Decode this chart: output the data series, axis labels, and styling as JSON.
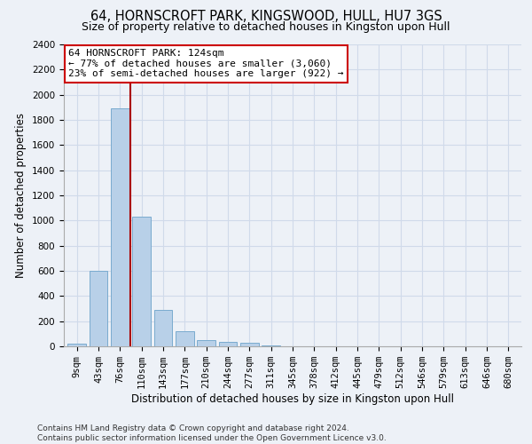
{
  "title": "64, HORNSCROFT PARK, KINGSWOOD, HULL, HU7 3GS",
  "subtitle": "Size of property relative to detached houses in Kingston upon Hull",
  "xlabel": "Distribution of detached houses by size in Kingston upon Hull",
  "ylabel": "Number of detached properties",
  "categories": [
    "9sqm",
    "43sqm",
    "76sqm",
    "110sqm",
    "143sqm",
    "177sqm",
    "210sqm",
    "244sqm",
    "277sqm",
    "311sqm",
    "345sqm",
    "378sqm",
    "412sqm",
    "445sqm",
    "479sqm",
    "512sqm",
    "546sqm",
    "579sqm",
    "613sqm",
    "646sqm",
    "680sqm"
  ],
  "values": [
    20,
    600,
    1890,
    1030,
    290,
    120,
    50,
    35,
    25,
    5,
    3,
    2,
    2,
    1,
    1,
    0,
    0,
    0,
    0,
    0,
    0
  ],
  "bar_color": "#b8d0e8",
  "bar_edge_color": "#7aabcf",
  "grid_color": "#d0daea",
  "background_color": "#edf1f7",
  "vline_color": "#aa0000",
  "vline_x_index": 2.5,
  "annotation_text": "64 HORNSCROFT PARK: 124sqm\n← 77% of detached houses are smaller (3,060)\n23% of semi-detached houses are larger (922) →",
  "annotation_box_color": "#ffffff",
  "annotation_box_edge": "#cc0000",
  "ylim": [
    0,
    2400
  ],
  "yticks": [
    0,
    200,
    400,
    600,
    800,
    1000,
    1200,
    1400,
    1600,
    1800,
    2000,
    2200,
    2400
  ],
  "footer": "Contains HM Land Registry data © Crown copyright and database right 2024.\nContains public sector information licensed under the Open Government Licence v3.0.",
  "title_fontsize": 10.5,
  "subtitle_fontsize": 9,
  "xlabel_fontsize": 8.5,
  "ylabel_fontsize": 8.5,
  "tick_fontsize": 7.5,
  "annotation_fontsize": 8,
  "footer_fontsize": 6.5
}
